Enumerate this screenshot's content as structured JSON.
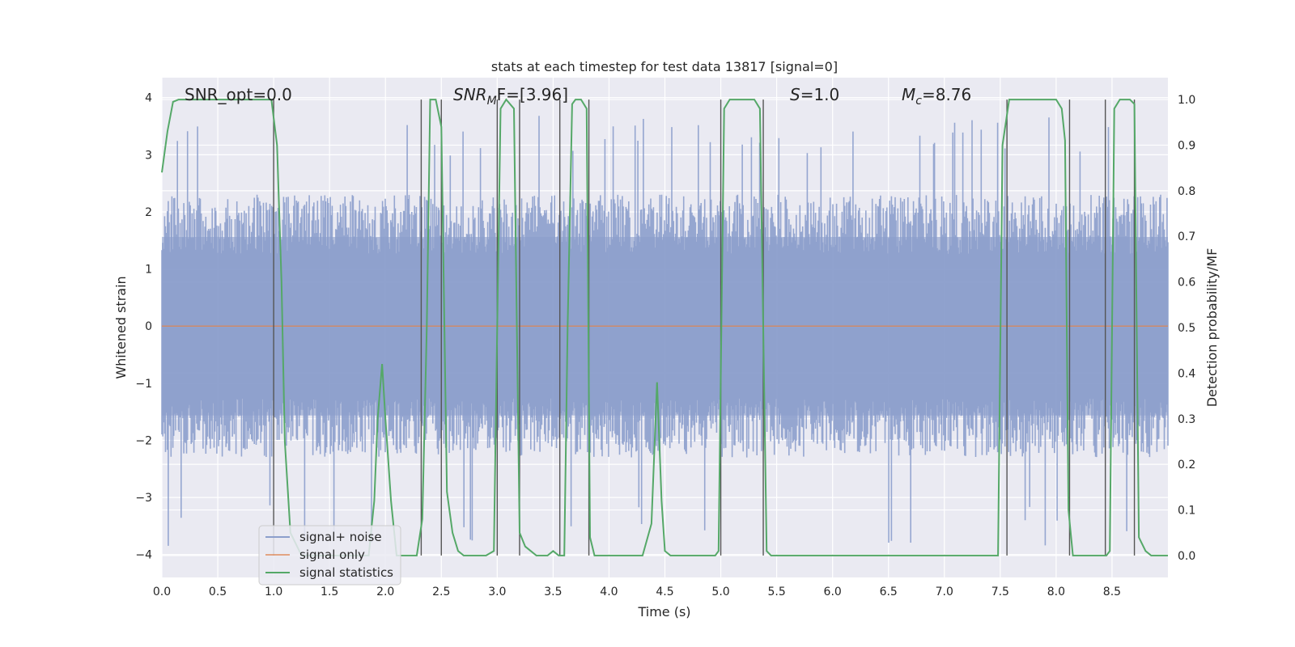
{
  "chart_data": {
    "type": "line",
    "title": "stats at each timestep for test data 13817 [signal=0]",
    "xlabel": "Time (s)",
    "ylabel": "Whitened strain",
    "y2label": "Detection probability/MF",
    "xlim": [
      0,
      9.0
    ],
    "ylim": [
      -4.4,
      4.35
    ],
    "y2lim": [
      -0.048,
      1.048
    ],
    "x_ticks": [
      "0.0",
      "0.5",
      "1.0",
      "1.5",
      "2.0",
      "2.5",
      "3.0",
      "3.5",
      "4.0",
      "4.5",
      "5.0",
      "5.5",
      "6.0",
      "6.5",
      "7.0",
      "7.5",
      "8.0",
      "8.5"
    ],
    "y_ticks": [
      "4",
      "3",
      "2",
      "1",
      "0",
      "−1",
      "−2",
      "−3",
      "−4"
    ],
    "y2_ticks": [
      "1.0",
      "0.9",
      "0.8",
      "0.7",
      "0.6",
      "0.5",
      "0.4",
      "0.3",
      "0.2",
      "0.1",
      "0.0"
    ],
    "grid": true,
    "legend_placement": "lower-left",
    "annotations": {
      "snr_opt": "SNR_opt=0.0",
      "snr_mf_name": "SNR",
      "snr_mf_sub": "M",
      "snr_mf_rest": "F=[3.96]",
      "s_name": "S",
      "s_value": "=1.0",
      "mc_name": "M",
      "mc_sub": "c",
      "mc_value": "=8.76"
    },
    "series": [
      {
        "name": "signal+ noise",
        "color": "#8c9fcc",
        "style": "noise band",
        "typical_range": [
          -2.3,
          2.3
        ],
        "extreme_range": [
          -3.9,
          3.7
        ]
      },
      {
        "name": "signal only",
        "color": "#dd8452",
        "x_range": [
          0,
          9.0
        ],
        "value": 0
      },
      {
        "name": "signal statistics",
        "color": "#55a868",
        "axis": "right",
        "x": [
          0.0,
          0.05,
          0.1,
          0.15,
          0.2,
          0.3,
          0.5,
          0.7,
          0.9,
          0.98,
          1.03,
          1.07,
          1.1,
          1.15,
          1.25,
          1.5,
          1.75,
          1.85,
          1.9,
          1.93,
          1.97,
          2.0,
          2.05,
          2.1,
          2.2,
          2.28,
          2.33,
          2.37,
          2.4,
          2.45,
          2.5,
          2.55,
          2.6,
          2.65,
          2.7,
          2.75,
          2.8,
          2.9,
          2.97,
          3.0,
          3.03,
          3.08,
          3.15,
          3.2,
          3.25,
          3.3,
          3.35,
          3.4,
          3.45,
          3.5,
          3.55,
          3.6,
          3.63,
          3.67,
          3.7,
          3.75,
          3.8,
          3.83,
          3.87,
          3.95,
          4.1,
          4.3,
          4.38,
          4.43,
          4.47,
          4.5,
          4.55,
          4.6,
          4.8,
          4.95,
          4.98,
          5.03,
          5.08,
          5.13,
          5.2,
          5.3,
          5.35,
          5.38,
          5.41,
          5.45,
          5.55,
          6.0,
          7.0,
          7.48,
          7.52,
          7.58,
          7.65,
          7.75,
          8.0,
          8.05,
          8.08,
          8.11,
          8.15,
          8.2,
          8.3,
          8.42,
          8.45,
          8.48,
          8.52,
          8.57,
          8.62,
          8.66,
          8.7,
          8.74,
          8.8,
          8.85,
          9.0
        ],
        "values": [
          0.84,
          0.93,
          0.995,
          1.0,
          1.0,
          1.0,
          1.0,
          1.0,
          1.0,
          1.0,
          0.9,
          0.6,
          0.25,
          0.05,
          0.0,
          0.0,
          0.0,
          0.0,
          0.12,
          0.3,
          0.42,
          0.3,
          0.12,
          0.0,
          0.0,
          0.0,
          0.08,
          0.5,
          1.0,
          1.0,
          0.94,
          0.14,
          0.05,
          0.01,
          0.0,
          0.0,
          0.0,
          0.0,
          0.01,
          0.5,
          0.98,
          1.0,
          0.98,
          0.05,
          0.02,
          0.01,
          0.0,
          0.0,
          0.0,
          0.01,
          0.0,
          0.0,
          0.5,
          0.99,
          1.0,
          1.0,
          0.98,
          0.04,
          0.0,
          0.0,
          0.0,
          0.0,
          0.07,
          0.38,
          0.12,
          0.01,
          0.0,
          0.0,
          0.0,
          0.0,
          0.01,
          0.98,
          1.0,
          1.0,
          1.0,
          1.0,
          0.98,
          0.5,
          0.01,
          0.0,
          0.0,
          0.0,
          0.0,
          0.0,
          0.9,
          1.0,
          1.0,
          1.0,
          1.0,
          0.98,
          0.91,
          0.1,
          0.0,
          0.0,
          0.0,
          0.0,
          0.0,
          0.01,
          0.98,
          1.0,
          1.0,
          1.0,
          0.99,
          0.04,
          0.01,
          0.0,
          0.0
        ]
      }
    ],
    "vertical_markers": [
      1.0,
      2.32,
      2.5,
      3.0,
      3.2,
      3.56,
      3.82,
      5.0,
      5.38,
      7.56,
      8.12,
      8.44,
      8.7
    ]
  }
}
